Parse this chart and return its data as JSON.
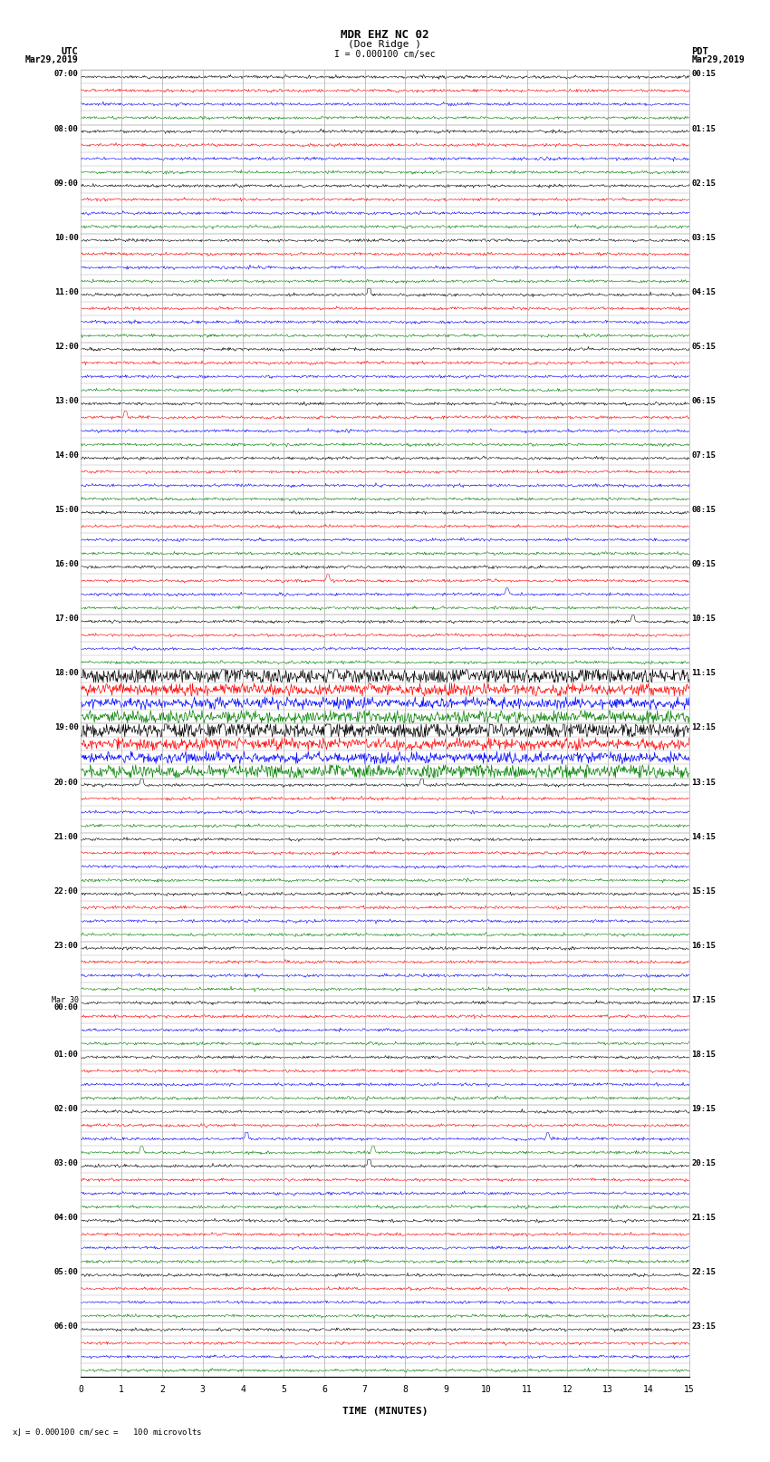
{
  "title_line1": "MDR EHZ NC 02",
  "title_line2": "(Doe Ridge )",
  "scale_label": "I = 0.000100 cm/sec",
  "left_header": "UTC",
  "right_header": "PDT",
  "left_date": "Mar29,2019",
  "right_date": "Mar29,2019",
  "bottom_label": "TIME (MINUTES)",
  "scale_note": "= 0.000100 cm/sec =   100 microvolts",
  "xlabel_ticks": [
    0,
    1,
    2,
    3,
    4,
    5,
    6,
    7,
    8,
    9,
    10,
    11,
    12,
    13,
    14,
    15
  ],
  "trace_colors": [
    "black",
    "red",
    "blue",
    "green"
  ],
  "bg_color": "#ffffff",
  "grid_color": "#aaaaaa",
  "n_minutes": 15,
  "rows": [
    {
      "utc": "07:00",
      "pdt": "00:15"
    },
    {
      "utc": "08:00",
      "pdt": "01:15"
    },
    {
      "utc": "09:00",
      "pdt": "02:15"
    },
    {
      "utc": "10:00",
      "pdt": "03:15"
    },
    {
      "utc": "11:00",
      "pdt": "04:15"
    },
    {
      "utc": "12:00",
      "pdt": "05:15"
    },
    {
      "utc": "13:00",
      "pdt": "06:15"
    },
    {
      "utc": "14:00",
      "pdt": "07:15"
    },
    {
      "utc": "15:00",
      "pdt": "08:15"
    },
    {
      "utc": "16:00",
      "pdt": "09:15"
    },
    {
      "utc": "17:00",
      "pdt": "10:15"
    },
    {
      "utc": "18:00",
      "pdt": "11:15"
    },
    {
      "utc": "19:00",
      "pdt": "12:15"
    },
    {
      "utc": "20:00",
      "pdt": "13:15"
    },
    {
      "utc": "21:00",
      "pdt": "14:15"
    },
    {
      "utc": "22:00",
      "pdt": "15:15"
    },
    {
      "utc": "23:00",
      "pdt": "16:15"
    },
    {
      "utc": "Mar30",
      "pdt": "17:15"
    },
    {
      "utc": "01:00",
      "pdt": "18:15"
    },
    {
      "utc": "02:00",
      "pdt": "19:15"
    },
    {
      "utc": "03:00",
      "pdt": "20:15"
    },
    {
      "utc": "04:00",
      "pdt": "21:15"
    },
    {
      "utc": "05:00",
      "pdt": "22:15"
    },
    {
      "utc": "06:00",
      "pdt": "23:15"
    }
  ],
  "special_spikes": [
    {
      "row": 4,
      "color": "black",
      "minute": 7.1,
      "amplitude": 3.5,
      "channel": 0
    },
    {
      "row": 6,
      "color": "red",
      "minute": 1.1,
      "amplitude": 2.5,
      "channel": 1
    },
    {
      "row": 9,
      "color": "blue",
      "minute": 10.5,
      "amplitude": 2.0,
      "channel": 2
    },
    {
      "row": 9,
      "color": "red",
      "minute": 6.1,
      "amplitude": 2.5,
      "channel": 1
    },
    {
      "row": 10,
      "color": "black",
      "minute": 13.6,
      "amplitude": 2.5,
      "channel": 0
    },
    {
      "row": 11,
      "color": "black",
      "minute": 3.5,
      "amplitude": 3.5,
      "channel": 0
    },
    {
      "row": 11,
      "color": "black",
      "minute": 6.3,
      "amplitude": 3.0,
      "channel": 0
    },
    {
      "row": 11,
      "color": "black",
      "minute": 9.5,
      "amplitude": 3.0,
      "channel": 0
    },
    {
      "row": 12,
      "color": "black",
      "minute": 2.1,
      "amplitude": 3.5,
      "channel": 0
    },
    {
      "row": 12,
      "color": "black",
      "minute": 3.5,
      "amplitude": 2.5,
      "channel": 0
    },
    {
      "row": 12,
      "color": "black",
      "minute": 6.1,
      "amplitude": 4.0,
      "channel": 0
    },
    {
      "row": 13,
      "color": "black",
      "minute": 1.5,
      "amplitude": 2.5,
      "channel": 0
    },
    {
      "row": 13,
      "color": "black",
      "minute": 8.4,
      "amplitude": 2.5,
      "channel": 0
    },
    {
      "row": 19,
      "color": "green",
      "minute": 1.5,
      "amplitude": 2.5,
      "channel": 3
    },
    {
      "row": 19,
      "color": "blue",
      "minute": 4.1,
      "amplitude": 2.5,
      "channel": 2
    },
    {
      "row": 19,
      "color": "green",
      "minute": 7.2,
      "amplitude": 2.5,
      "channel": 3
    },
    {
      "row": 19,
      "color": "blue",
      "minute": 11.5,
      "amplitude": 2.0,
      "channel": 2
    },
    {
      "row": 20,
      "color": "black",
      "minute": 7.1,
      "amplitude": 3.5,
      "channel": 0
    }
  ],
  "noisy_rows": [
    11,
    12
  ],
  "noisy_rows_green": [
    12
  ]
}
